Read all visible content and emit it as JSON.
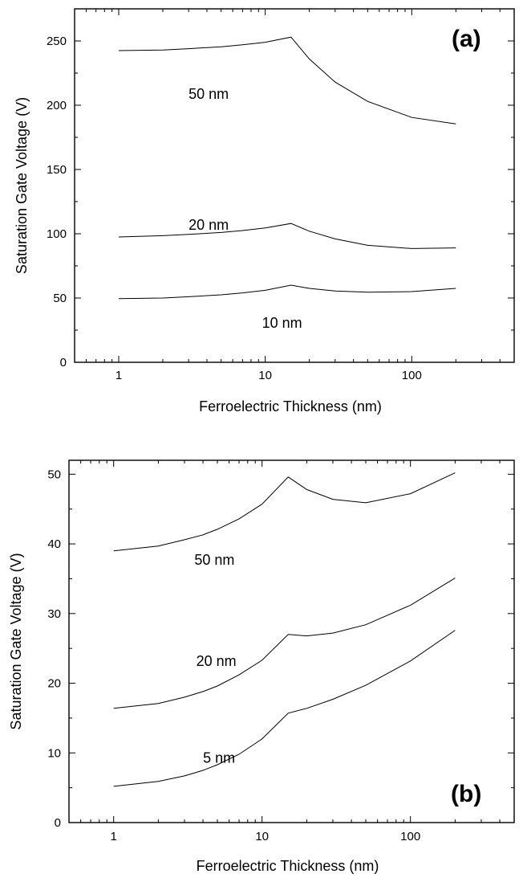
{
  "chart_data": [
    {
      "type": "line",
      "panel_label": "(a)",
      "xlabel": "Ferroelectric Thickness (nm)",
      "ylabel": "Saturation Gate Voltage (V)",
      "x_scale": "log",
      "xlim": [
        0.5,
        500
      ],
      "ylim": [
        0,
        275
      ],
      "x_ticks": [
        1,
        10,
        100
      ],
      "x_tick_labels": [
        "1",
        "10",
        "100"
      ],
      "y_ticks": [
        0,
        50,
        100,
        150,
        200,
        250
      ],
      "y_tick_labels": [
        "0",
        "50",
        "100",
        "150",
        "200",
        "250"
      ],
      "series": [
        {
          "label": "50 nm",
          "label_pos": [
            3,
            205
          ],
          "x": [
            1,
            2,
            3,
            5,
            7,
            10,
            15,
            20,
            30,
            50,
            100,
            200
          ],
          "y": [
            242.5,
            243,
            244,
            245.5,
            247,
            249,
            253,
            236,
            218,
            203,
            190.5,
            185.5
          ]
        },
        {
          "label": "20 nm",
          "label_pos": [
            3,
            103
          ],
          "x": [
            1,
            2,
            3,
            5,
            7,
            10,
            15,
            20,
            30,
            50,
            100,
            200
          ],
          "y": [
            97.5,
            98.5,
            99.5,
            101,
            102.5,
            104.5,
            108,
            102,
            96,
            91,
            88.5,
            89
          ]
        },
        {
          "label": "10 nm",
          "label_pos": [
            9.5,
            27
          ],
          "x": [
            1,
            2,
            3,
            5,
            7,
            10,
            15,
            20,
            30,
            50,
            100,
            200
          ],
          "y": [
            49.5,
            50,
            51,
            52.5,
            54,
            56,
            60,
            57.5,
            55.5,
            54.5,
            55,
            57.5
          ]
        }
      ]
    },
    {
      "type": "line",
      "panel_label": "(b)",
      "xlabel": "Ferroelectric Thickness (nm)",
      "ylabel": "Saturation Gate Voltage (V)",
      "x_scale": "log",
      "xlim": [
        0.5,
        500
      ],
      "ylim": [
        0,
        52
      ],
      "x_ticks": [
        1,
        10,
        100
      ],
      "x_tick_labels": [
        "1",
        "10",
        "100"
      ],
      "y_ticks": [
        0,
        10,
        20,
        30,
        40,
        50
      ],
      "y_tick_labels": [
        "0",
        "10",
        "20",
        "30",
        "40",
        "50"
      ],
      "series": [
        {
          "label": "50 nm",
          "label_pos": [
            3.5,
            37
          ],
          "x": [
            1,
            2,
            3,
            4,
            5,
            7,
            10,
            15,
            20,
            30,
            50,
            100,
            200
          ],
          "y": [
            39,
            39.7,
            40.6,
            41.3,
            42.1,
            43.6,
            45.7,
            49.6,
            47.8,
            46.4,
            45.9,
            47.2,
            50.2
          ]
        },
        {
          "label": "20 nm",
          "label_pos": [
            3.6,
            22.5
          ],
          "x": [
            1,
            2,
            3,
            4,
            5,
            7,
            10,
            15,
            20,
            30,
            50,
            100,
            200
          ],
          "y": [
            16.4,
            17.1,
            18,
            18.8,
            19.6,
            21.2,
            23.3,
            27,
            26.8,
            27.2,
            28.4,
            31.2,
            35.1
          ]
        },
        {
          "label": "5 nm",
          "label_pos": [
            4,
            8.6
          ],
          "x": [
            1,
            2,
            3,
            4,
            5,
            7,
            10,
            15,
            20,
            30,
            50,
            100,
            200
          ],
          "y": [
            5.2,
            5.9,
            6.7,
            7.5,
            8.3,
            9.8,
            12,
            15.7,
            16.4,
            17.7,
            19.7,
            23.2,
            27.6
          ]
        }
      ]
    }
  ]
}
